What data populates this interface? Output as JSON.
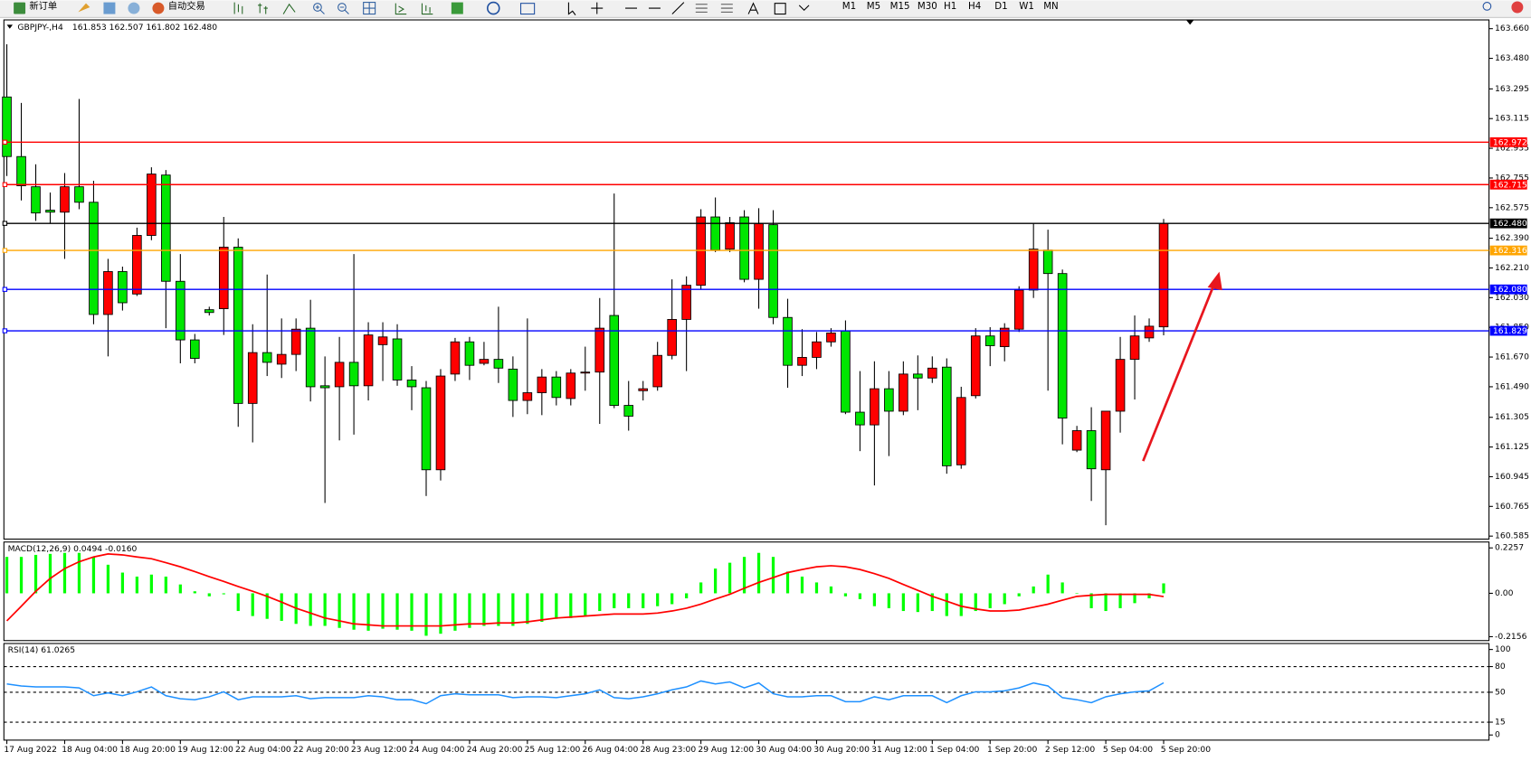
{
  "toolbar": {
    "new_order": "新订单",
    "auto_trading": "自动交易",
    "timeframes": [
      "M1",
      "M5",
      "M15",
      "M30",
      "H1",
      "H4",
      "D1",
      "W1",
      "MN"
    ]
  },
  "chart_data": [
    {
      "type": "candlestick",
      "title": "GBPJPY-,H4",
      "subtitle": "161.853 162.507 161.802 162.480",
      "categories": [
        "17 Aug 2022",
        null,
        null,
        null,
        "18 Aug 04:00",
        null,
        null,
        null,
        "18 Aug 20:00",
        null,
        null,
        null,
        "19 Aug 12:00",
        null,
        null,
        null,
        "22 Aug 04:00",
        null,
        null,
        null,
        "22 Aug 20:00",
        null,
        null,
        null,
        "23 Aug 12:00",
        null,
        null,
        null,
        "24 Aug 04:00",
        null,
        null,
        null,
        "24 Aug 20:00",
        null,
        null,
        null,
        "25 Aug 12:00",
        null,
        null,
        null,
        "26 Aug 04:00",
        null,
        null,
        null,
        "28 Aug 23:00",
        null,
        null,
        null,
        "29 Aug 12:00",
        null,
        null,
        null,
        "30 Aug 04:00",
        null,
        null,
        null,
        "30 Aug 20:00",
        null,
        null,
        null,
        "31 Aug 12:00",
        null,
        null,
        null,
        "1 Sep 04:00",
        null,
        null,
        null,
        "1 Sep 20:00",
        null,
        null,
        null,
        "2 Sep 12:00",
        null,
        null,
        null,
        "5 Sep 04:00",
        null,
        null,
        null,
        "5 Sep 20:00"
      ],
      "open": [
        163.246,
        162.885,
        162.702,
        162.56,
        162.548,
        162.702,
        162.608,
        161.928,
        162.188,
        162.052,
        162.407,
        162.773,
        162.129,
        161.774,
        161.957,
        161.963,
        162.336,
        161.389,
        161.697,
        161.627,
        161.686,
        161.845,
        161.496,
        161.49,
        161.638,
        161.496,
        161.745,
        161.78,
        161.531,
        161.484,
        160.987,
        161.567,
        161.762,
        161.632,
        161.656,
        161.597,
        161.407,
        161.454,
        161.549,
        161.419,
        161.573,
        161.579,
        161.922,
        161.377,
        161.466,
        161.49,
        161.68,
        161.898,
        162.105,
        162.519,
        162.324,
        162.519,
        162.141,
        162.472,
        161.91,
        161.62,
        161.668,
        161.762,
        161.828,
        161.336,
        161.259,
        161.478,
        161.342,
        161.567,
        161.543,
        161.609,
        161.017,
        161.436,
        161.798,
        161.733,
        161.839,
        162.076,
        162.318,
        162.176,
        161.106,
        161.224,
        160.987,
        161.342,
        161.656,
        161.786,
        161.853
      ],
      "high": [
        163.565,
        163.21,
        162.838,
        162.667,
        162.785,
        163.234,
        162.738,
        162.265,
        162.218,
        162.454,
        162.82,
        162.803,
        162.294,
        161.81,
        161.975,
        162.519,
        162.389,
        161.869,
        162.17,
        161.904,
        161.904,
        162.017,
        161.674,
        161.792,
        162.294,
        161.881,
        161.881,
        161.869,
        161.615,
        161.525,
        161.597,
        161.786,
        161.792,
        161.762,
        161.975,
        161.674,
        161.904,
        161.597,
        161.585,
        161.597,
        161.733,
        162.028,
        162.661,
        161.525,
        161.525,
        161.762,
        162.141,
        162.159,
        162.566,
        162.637,
        162.519,
        162.56,
        162.572,
        162.56,
        162.023,
        161.839,
        161.822,
        161.845,
        161.892,
        161.585,
        161.644,
        161.585,
        161.644,
        161.68,
        161.674,
        161.662,
        161.49,
        161.845,
        161.851,
        161.875,
        162.099,
        162.478,
        162.442,
        162.2,
        161.253,
        161.366,
        161.342,
        161.792,
        161.922,
        161.904,
        162.507
      ],
      "low": [
        162.767,
        162.619,
        162.495,
        162.478,
        162.265,
        162.566,
        161.869,
        161.674,
        161.952,
        162.04,
        162.378,
        161.845,
        161.632,
        161.632,
        161.922,
        161.804,
        161.247,
        161.153,
        161.555,
        161.543,
        161.585,
        161.401,
        160.786,
        161.165,
        161.2,
        161.407,
        161.525,
        161.496,
        161.348,
        160.828,
        160.922,
        161.525,
        161.531,
        161.62,
        161.513,
        161.307,
        161.324,
        161.318,
        161.377,
        161.377,
        161.466,
        161.265,
        161.36,
        161.224,
        161.407,
        161.466,
        161.656,
        161.585,
        162.082,
        162.306,
        162.306,
        162.123,
        161.963,
        161.869,
        161.484,
        161.555,
        161.597,
        161.733,
        161.324,
        161.1,
        160.892,
        161.07,
        161.318,
        161.348,
        161.513,
        160.963,
        160.993,
        161.419,
        161.615,
        161.644,
        161.822,
        162.028,
        161.466,
        161.141,
        161.094,
        160.798,
        160.651,
        161.212,
        161.413,
        161.762,
        161.802
      ],
      "close": [
        162.885,
        162.708,
        162.543,
        162.548,
        162.702,
        162.608,
        161.928,
        162.188,
        161.999,
        162.407,
        162.779,
        162.129,
        161.774,
        161.662,
        161.94,
        162.336,
        161.389,
        161.697,
        161.638,
        161.686,
        161.839,
        161.49,
        161.484,
        161.638,
        161.496,
        161.804,
        161.792,
        161.531,
        161.49,
        160.987,
        161.555,
        161.762,
        161.62,
        161.656,
        161.603,
        161.407,
        161.454,
        161.549,
        161.425,
        161.573,
        161.579,
        161.845,
        161.377,
        161.312,
        161.478,
        161.68,
        161.898,
        162.105,
        162.519,
        162.318,
        162.484,
        162.141,
        162.478,
        161.91,
        161.62,
        161.668,
        161.762,
        161.816,
        161.336,
        161.259,
        161.478,
        161.342,
        161.567,
        161.543,
        161.603,
        161.011,
        161.425,
        161.798,
        161.739,
        161.845,
        162.076,
        162.324,
        162.176,
        161.3,
        161.224,
        160.993,
        161.342,
        161.656,
        161.798,
        161.857,
        162.48
      ],
      "up_color": "#ff0000",
      "down_color": "#00e600",
      "ylim": [
        160.567,
        163.713
      ],
      "yticks": [
        {
          "value": 163.66,
          "label": "163.660"
        },
        {
          "value": 163.48,
          "label": "163.480"
        },
        163.295,
        163.115,
        162.935,
        162.755,
        162.575,
        {
          "value": 162.39,
          "label": "162.390"
        },
        {
          "value": 162.21,
          "label": "162.210"
        },
        {
          "value": 162.03,
          "label": "162.030"
        },
        {
          "value": 161.85,
          "label": "161.850"
        },
        {
          "value": 161.67,
          "label": "161.670"
        },
        {
          "value": 161.49,
          "label": "161.490"
        },
        161.305,
        161.125,
        160.945,
        160.765,
        160.585
      ],
      "hlines": [
        {
          "value": 162.972,
          "color": "#ff0000"
        },
        {
          "value": 162.715,
          "color": "#ff0000"
        },
        {
          "value": 162.48,
          "label": "162.480",
          "color": "#000000"
        },
        {
          "value": 162.316,
          "color": "#ffa500"
        },
        {
          "value": 162.08,
          "label": "162.080",
          "color": "#0000ff"
        },
        {
          "value": 161.829,
          "color": "#0000ff"
        }
      ]
    },
    {
      "type": "macd",
      "title": "MACD(12,26,9) 0.0494 -0.0160",
      "histogram": {
        "color": "#00ff00",
        "values": [
          0.181,
          0.181,
          0.191,
          0.196,
          0.201,
          0.201,
          0.181,
          0.142,
          0.103,
          0.083,
          0.093,
          0.083,
          0.044,
          0.01,
          -0.015,
          -0.005,
          -0.088,
          -0.113,
          -0.127,
          -0.137,
          -0.152,
          -0.162,
          -0.162,
          -0.172,
          -0.181,
          -0.186,
          -0.176,
          -0.181,
          -0.186,
          -0.211,
          -0.201,
          -0.186,
          -0.172,
          -0.162,
          -0.162,
          -0.162,
          -0.152,
          -0.142,
          -0.127,
          -0.123,
          -0.113,
          -0.088,
          -0.074,
          -0.074,
          -0.074,
          -0.064,
          -0.054,
          -0.025,
          0.054,
          0.123,
          0.152,
          0.181,
          0.201,
          0.181,
          0.108,
          0.083,
          0.054,
          0.034,
          -0.015,
          -0.029,
          -0.064,
          -0.074,
          -0.088,
          -0.093,
          -0.088,
          -0.113,
          -0.113,
          -0.088,
          -0.074,
          -0.054,
          -0.015,
          0.034,
          0.093,
          0.054,
          0.0,
          -0.074,
          -0.088,
          -0.074,
          -0.049,
          -0.025,
          0.0494
        ]
      },
      "signal": {
        "color": "#ff0000",
        "values": [
          -0.137,
          -0.064,
          0.01,
          0.074,
          0.123,
          0.157,
          0.181,
          0.196,
          0.191,
          0.181,
          0.172,
          0.152,
          0.132,
          0.108,
          0.083,
          0.059,
          0.034,
          0.01,
          -0.015,
          -0.044,
          -0.074,
          -0.098,
          -0.123,
          -0.137,
          -0.152,
          -0.157,
          -0.162,
          -0.162,
          -0.162,
          -0.162,
          -0.162,
          -0.157,
          -0.152,
          -0.152,
          -0.147,
          -0.147,
          -0.142,
          -0.132,
          -0.123,
          -0.118,
          -0.113,
          -0.108,
          -0.103,
          -0.103,
          -0.103,
          -0.098,
          -0.088,
          -0.074,
          -0.054,
          -0.029,
          -0.005,
          0.025,
          0.054,
          0.078,
          0.103,
          0.118,
          0.132,
          0.137,
          0.132,
          0.118,
          0.098,
          0.074,
          0.044,
          0.015,
          -0.015,
          -0.039,
          -0.064,
          -0.078,
          -0.088,
          -0.088,
          -0.083,
          -0.069,
          -0.054,
          -0.034,
          -0.015,
          -0.01,
          -0.005,
          -0.005,
          -0.005,
          -0.005,
          -0.016
        ]
      },
      "ylim": [
        -0.235,
        0.255
      ],
      "yticks": [
        0.2257,
        {
          "value": 0,
          "label": "0.00"
        },
        -0.2156
      ]
    },
    {
      "type": "rsi",
      "title": "RSI(14) 61.0265",
      "color": "#1e90ff",
      "values": [
        59.7,
        57.4,
        56.2,
        56.2,
        56.2,
        55.1,
        45.9,
        49.3,
        45.9,
        50.5,
        56.2,
        45.9,
        42.4,
        41.3,
        44.7,
        50.5,
        41.3,
        44.7,
        44.7,
        44.7,
        45.9,
        42.4,
        43.6,
        43.6,
        43.6,
        45.9,
        44.7,
        41.3,
        41.3,
        36.6,
        45.9,
        48.2,
        47.0,
        47.0,
        47.0,
        43.6,
        44.7,
        44.7,
        43.6,
        45.9,
        48.2,
        52.8,
        43.6,
        42.4,
        44.7,
        48.2,
        52.8,
        56.2,
        63.2,
        59.7,
        62.0,
        55.1,
        60.9,
        48.2,
        44.7,
        44.7,
        45.9,
        45.9,
        39.0,
        39.0,
        44.7,
        41.3,
        45.9,
        45.9,
        45.9,
        37.8,
        45.9,
        50.5,
        50.5,
        51.6,
        55.1,
        60.9,
        57.4,
        43.6,
        41.3,
        37.8,
        44.7,
        48.2,
        50.5,
        51.6,
        61.0265
      ],
      "ylim": [
        -6,
        107
      ],
      "yticks": [
        100,
        80,
        50,
        15,
        0
      ],
      "dashed_levels": [
        80,
        50,
        15
      ]
    }
  ]
}
